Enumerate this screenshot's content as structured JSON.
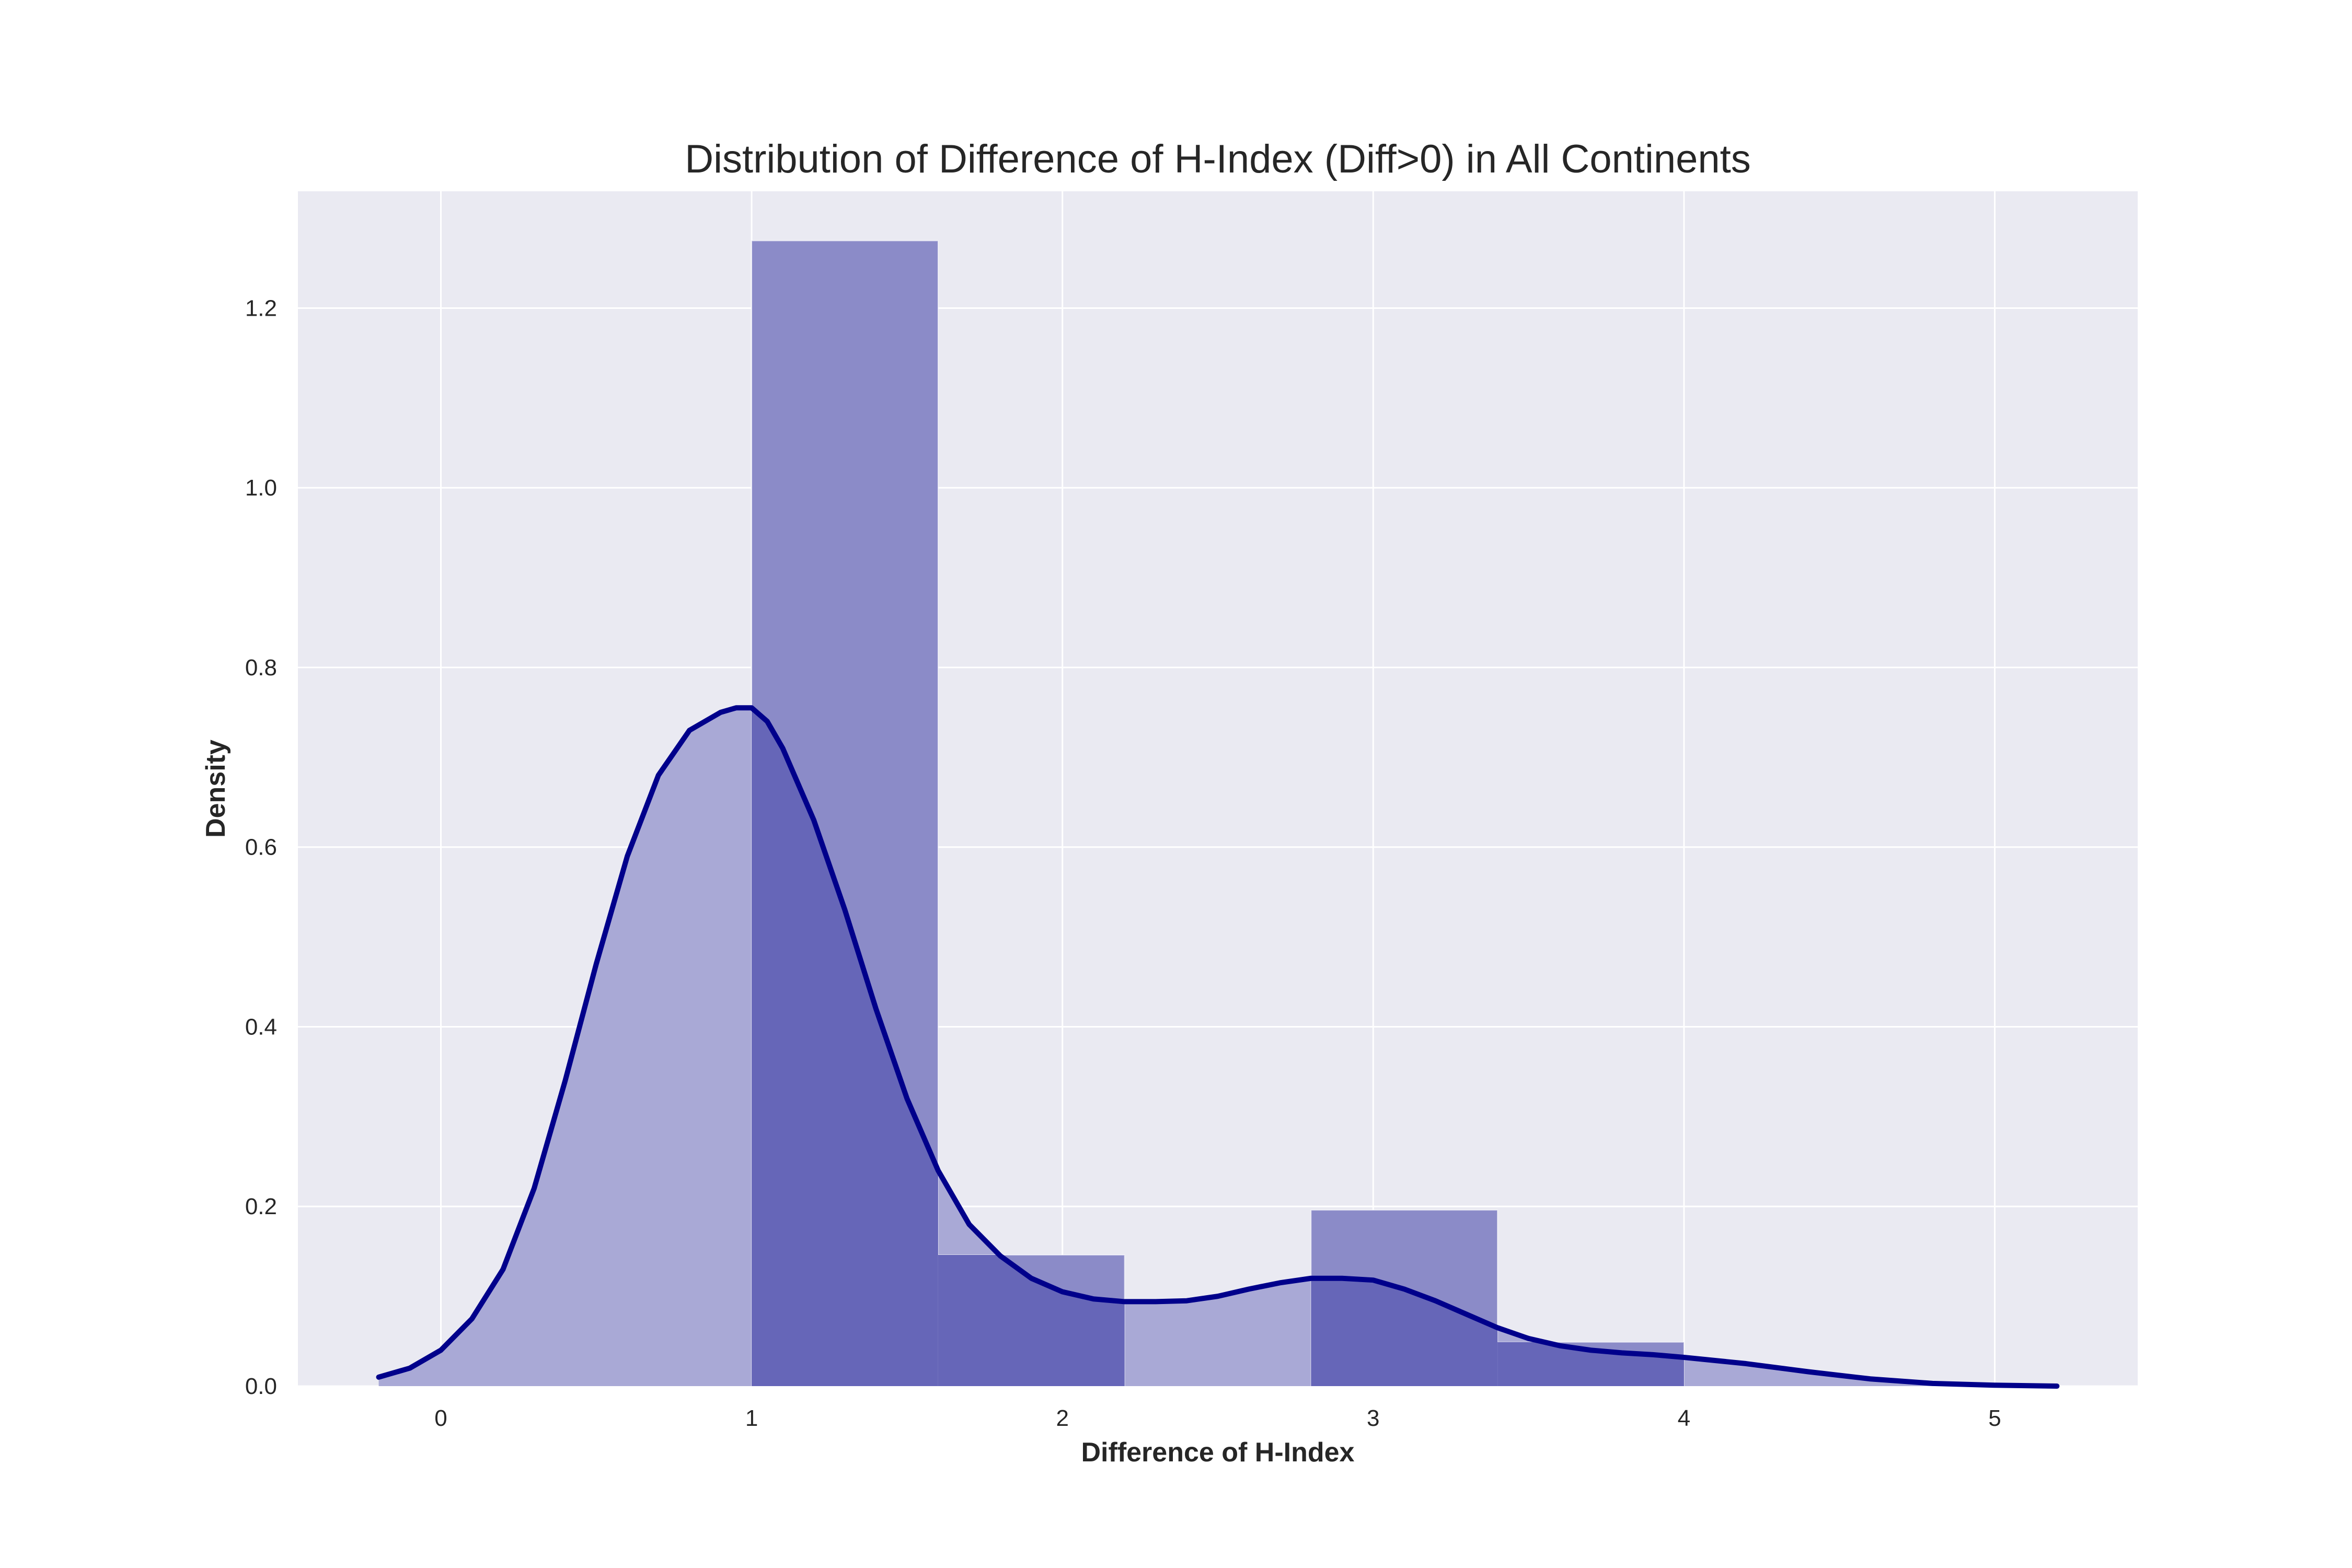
{
  "colors": {
    "background": "#ffffff",
    "plot_bg": "#eaeaf2",
    "grid": "#ffffff",
    "bar_fill": "#8b8bc8",
    "kde_fill": "#a9a9d6",
    "overlap_fill": "#6666b8",
    "kde_line": "#00008b",
    "text": "#262626"
  },
  "chart_data": {
    "type": "bar",
    "title": "Distribution of Difference of H-Index (Diff>0) in All Continents",
    "xlabel": "Difference of H-Index",
    "ylabel": "Density",
    "xlim": [
      -0.46,
      5.46
    ],
    "ylim": [
      0,
      1.33
    ],
    "grid": true,
    "xticks": [
      0,
      1,
      2,
      3,
      4,
      5
    ],
    "xtick_labels": [
      "0",
      "1",
      "2",
      "3",
      "4",
      "5"
    ],
    "yticks": [
      0.0,
      0.2,
      0.4,
      0.6,
      0.8,
      1.0,
      1.2
    ],
    "ytick_labels": [
      "0.0",
      "0.2",
      "0.4",
      "0.6",
      "0.8",
      "1.0",
      "1.2"
    ],
    "histogram": {
      "bin_edges": [
        1.0,
        1.6,
        2.2,
        2.8,
        3.4,
        4.0
      ],
      "densities": [
        1.275,
        0.146,
        0.0,
        0.196,
        0.049
      ]
    },
    "kde": {
      "x": [
        -0.2,
        -0.1,
        0.0,
        0.1,
        0.2,
        0.3,
        0.4,
        0.5,
        0.6,
        0.7,
        0.8,
        0.9,
        0.95,
        1.0,
        1.05,
        1.1,
        1.2,
        1.3,
        1.4,
        1.5,
        1.6,
        1.7,
        1.8,
        1.9,
        2.0,
        2.1,
        2.2,
        2.3,
        2.4,
        2.5,
        2.6,
        2.7,
        2.8,
        2.9,
        3.0,
        3.1,
        3.2,
        3.3,
        3.4,
        3.5,
        3.6,
        3.7,
        3.8,
        3.9,
        4.0,
        4.2,
        4.4,
        4.6,
        4.8,
        5.0,
        5.2
      ],
      "y": [
        0.01,
        0.02,
        0.04,
        0.075,
        0.13,
        0.22,
        0.34,
        0.47,
        0.59,
        0.68,
        0.73,
        0.75,
        0.755,
        0.755,
        0.74,
        0.71,
        0.63,
        0.53,
        0.42,
        0.32,
        0.24,
        0.18,
        0.145,
        0.12,
        0.105,
        0.097,
        0.094,
        0.094,
        0.095,
        0.1,
        0.108,
        0.115,
        0.12,
        0.12,
        0.118,
        0.108,
        0.095,
        0.08,
        0.065,
        0.053,
        0.045,
        0.04,
        0.037,
        0.035,
        0.032,
        0.025,
        0.016,
        0.008,
        0.003,
        0.001,
        0.0
      ]
    }
  }
}
